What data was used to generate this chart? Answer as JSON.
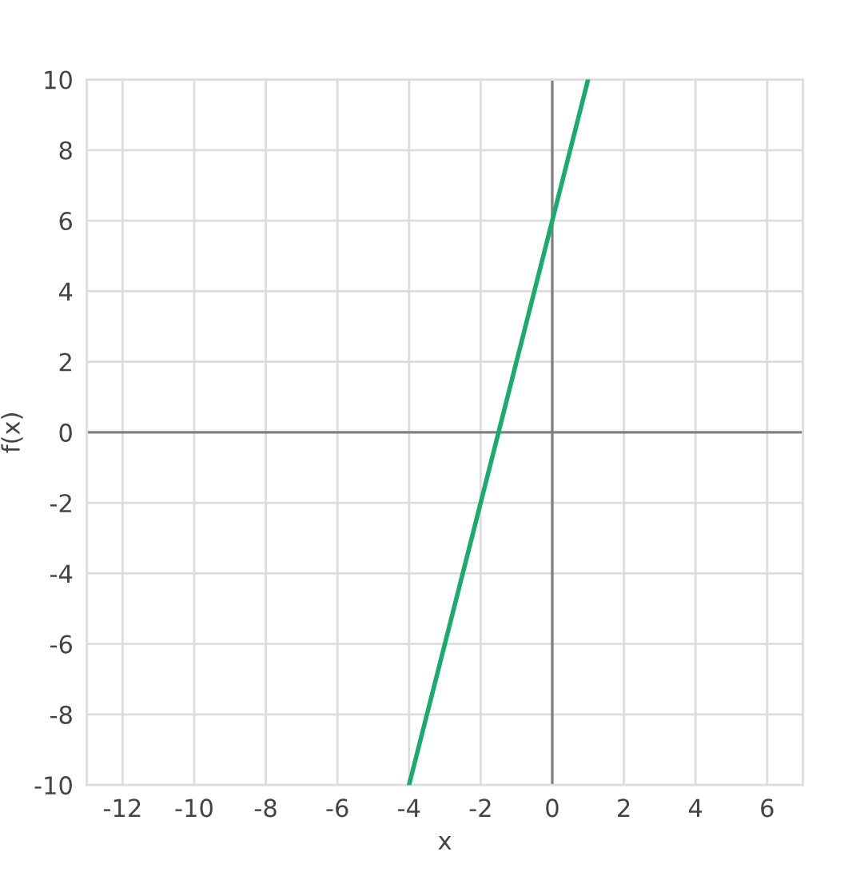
{
  "chart_data": {
    "type": "line",
    "xlabel": "x",
    "ylabel": "f(x)",
    "x": [
      -4,
      1
    ],
    "series": [
      {
        "color": "#1aab6d",
        "values": [
          -10,
          10
        ]
      }
    ],
    "xlim": [
      -13,
      7
    ],
    "ylim": [
      -10,
      10
    ],
    "xticks": [
      -12,
      -10,
      -8,
      -6,
      -4,
      -2,
      0,
      2,
      4,
      6
    ],
    "yticks": [
      -10,
      -8,
      -6,
      -4,
      -2,
      0,
      2,
      4,
      6,
      8,
      10
    ],
    "grid": true,
    "marker": "none",
    "line_style": "solid"
  }
}
